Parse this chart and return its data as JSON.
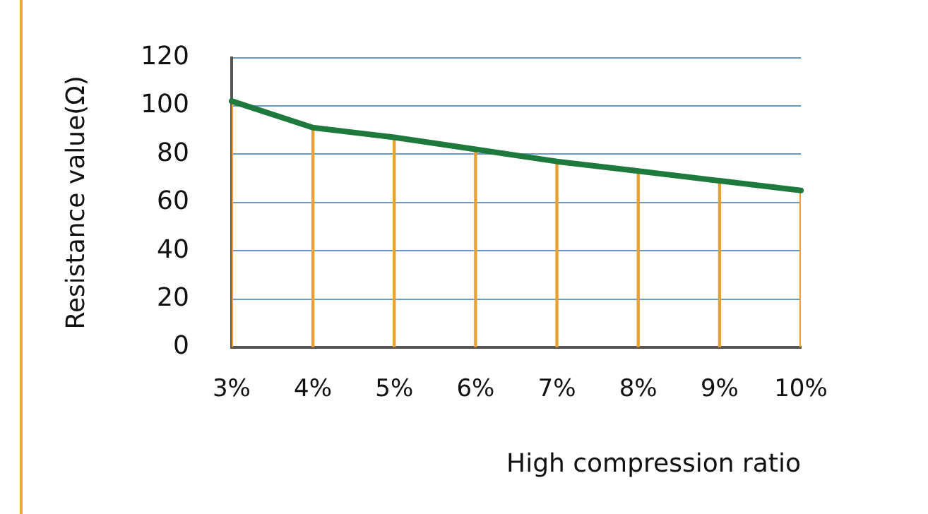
{
  "chart_data": {
    "type": "line",
    "xlabel": "High compression ratio",
    "ylabel": "Resistance value(Ω)",
    "categories": [
      "3%",
      "4%",
      "5%",
      "6%",
      "7%",
      "8%",
      "9%",
      "10%"
    ],
    "series": [
      {
        "color": "#1e7a3c",
        "values": [
          102,
          91,
          87,
          82,
          77,
          73,
          69,
          65
        ]
      },
      {
        "type": "bar",
        "color": "#e8a030",
        "values": [
          102,
          91,
          87,
          82,
          77,
          73,
          69,
          65
        ]
      }
    ],
    "ylim": [
      0,
      120
    ],
    "yticks": [
      0,
      20,
      40,
      60,
      80,
      100,
      120
    ],
    "grid": "y",
    "legend": false,
    "marker": "none",
    "line_style": "solid"
  }
}
